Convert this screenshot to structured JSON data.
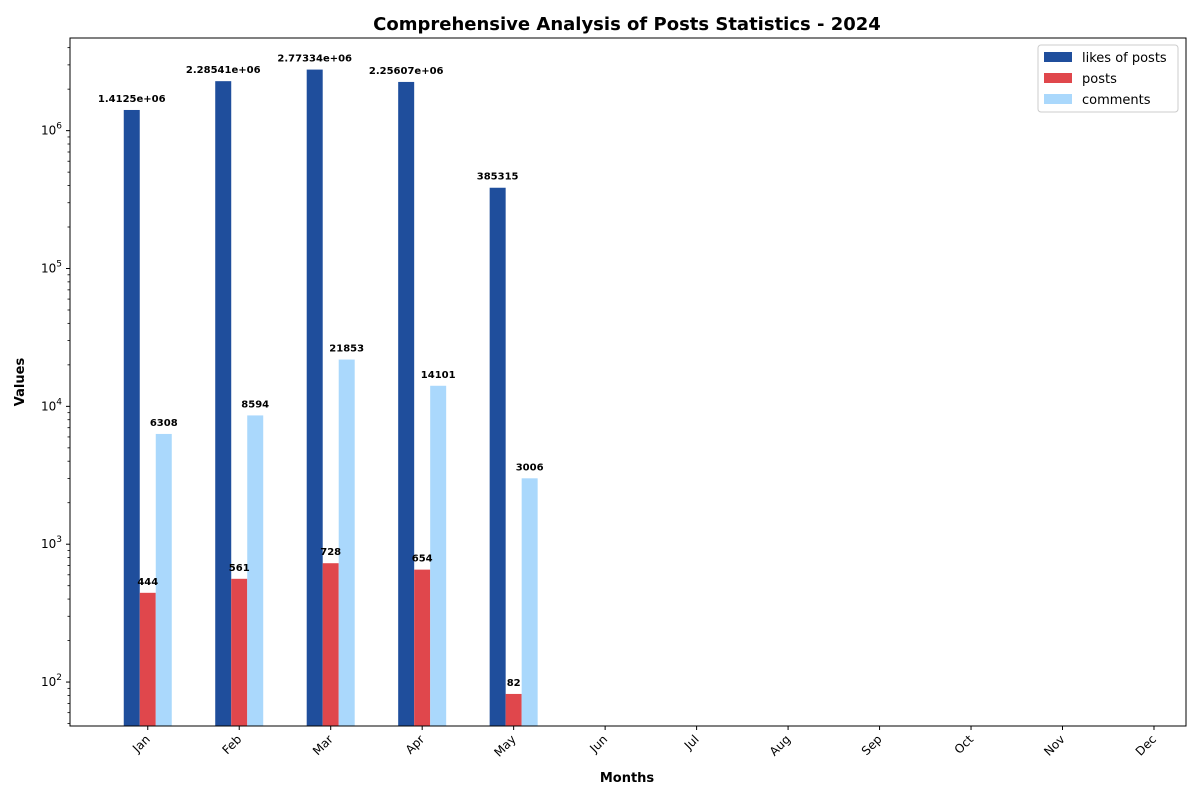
{
  "chart_data": {
    "type": "bar",
    "title": "Comprehensive Analysis of Posts Statistics - 2024",
    "xlabel": "Months",
    "ylabel": "Values",
    "yscale": "log",
    "ylim": [
      48,
      4700000
    ],
    "legend_position": "top-right",
    "grid": false,
    "categories": [
      "Jan",
      "Feb",
      "Mar",
      "Apr",
      "May",
      "Jun",
      "Jul",
      "Aug",
      "Sep",
      "Oct",
      "Nov",
      "Dec"
    ],
    "yticks": [
      {
        "base": "10",
        "exp": "2",
        "value": 100
      },
      {
        "base": "10",
        "exp": "3",
        "value": 1000
      },
      {
        "base": "10",
        "exp": "4",
        "value": 10000
      },
      {
        "base": "10",
        "exp": "5",
        "value": 100000
      },
      {
        "base": "10",
        "exp": "6",
        "value": 1000000
      }
    ],
    "series": [
      {
        "name": "likes of posts",
        "color": "#1f4e9c",
        "values": [
          1412500,
          2285410,
          2773340,
          2256070,
          385315,
          null,
          null,
          null,
          null,
          null,
          null,
          null
        ],
        "labels": [
          "1.4125e+06",
          "2.28541e+06",
          "2.77334e+06",
          "2.25607e+06",
          "385315",
          "",
          "",
          "",
          "",
          "",
          "",
          ""
        ]
      },
      {
        "name": "posts",
        "color": "#e0474c",
        "values": [
          444,
          561,
          728,
          654,
          82,
          null,
          null,
          null,
          null,
          null,
          null,
          null
        ],
        "labels": [
          "444",
          "561",
          "728",
          "654",
          "82",
          "",
          "",
          "",
          "",
          "",
          "",
          ""
        ]
      },
      {
        "name": "comments",
        "color": "#aad8fc",
        "values": [
          6308,
          8594,
          21853,
          14101,
          3006,
          null,
          null,
          null,
          null,
          null,
          null,
          null
        ],
        "labels": [
          "6308",
          "8594",
          "21853",
          "14101",
          "3006",
          "",
          "",
          "",
          "",
          "",
          "",
          ""
        ]
      }
    ]
  }
}
